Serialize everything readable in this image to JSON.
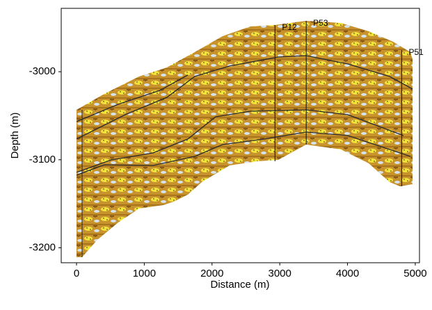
{
  "chart_data": {
    "type": "section",
    "xlabel": "Distance (m)",
    "ylabel": "Depth (m)",
    "xlim": [
      -226,
      5062
    ],
    "ylim": [
      -3217,
      -2928
    ],
    "xticks": [
      0,
      1000,
      2000,
      3000,
      4000,
      5000
    ],
    "yticks": [
      -3200,
      -3100,
      -3000
    ],
    "wells": [
      {
        "name": "P12",
        "x": 2930
      },
      {
        "name": "P53",
        "x": 3390
      },
      {
        "name": "P51",
        "x": 4800
      }
    ]
  }
}
